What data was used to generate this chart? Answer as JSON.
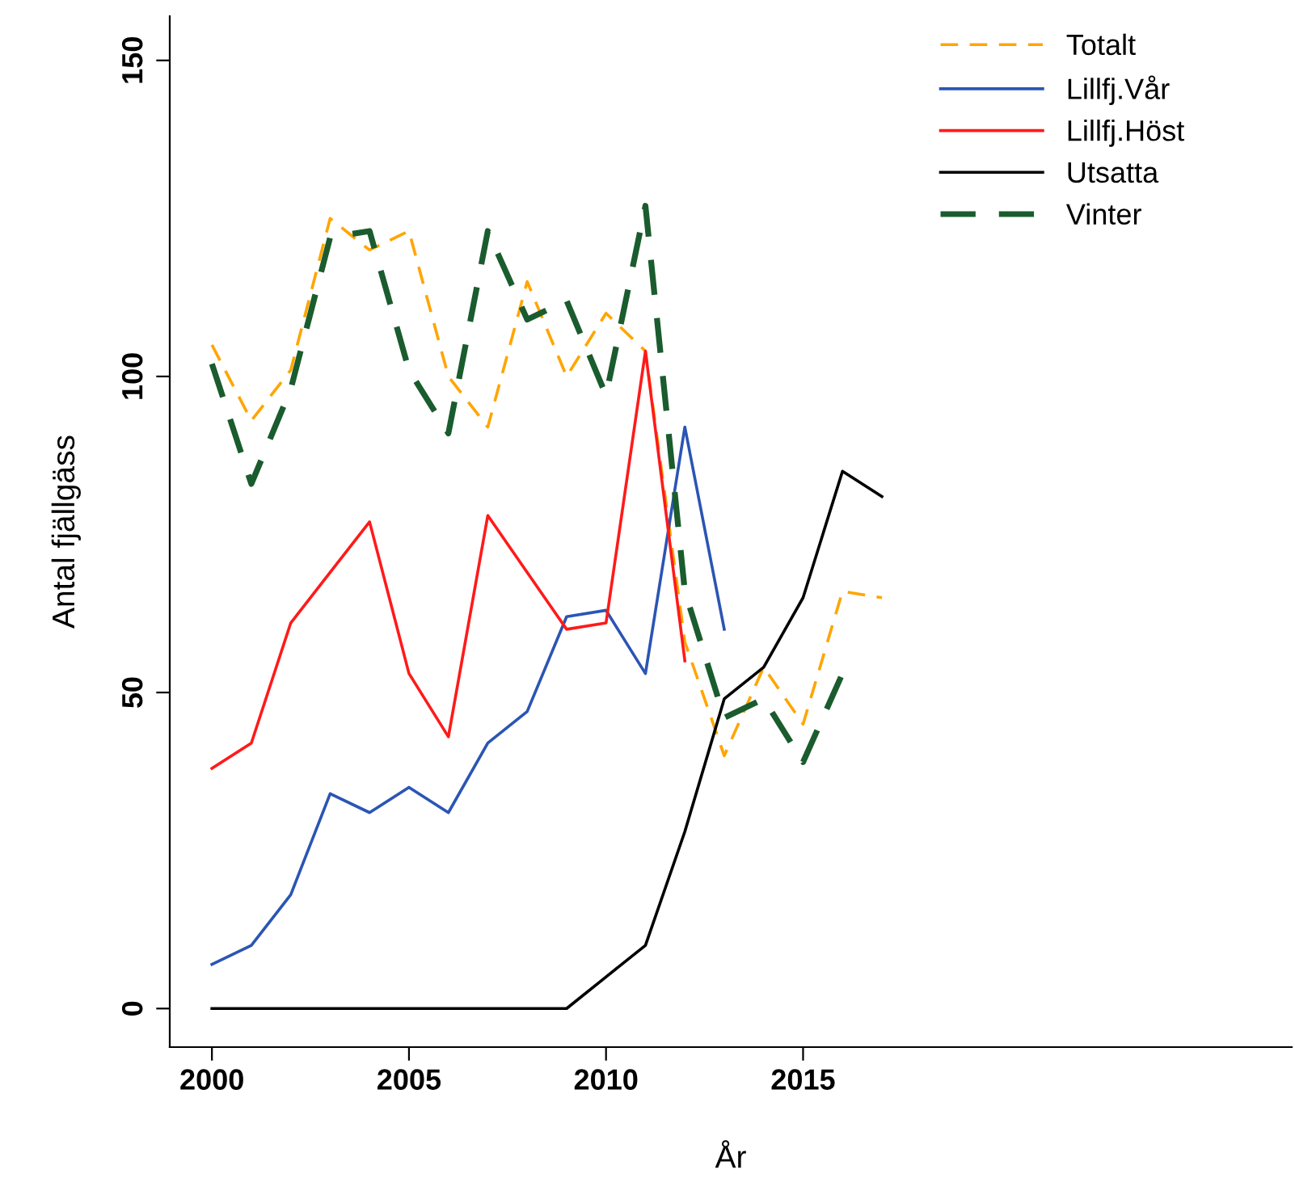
{
  "chart_data": {
    "type": "line",
    "xlabel": "År",
    "ylabel": "Antal fjällgäss",
    "xlim": [
      1998.93,
      2027.4
    ],
    "ylim": [
      -6.1,
      157
    ],
    "xticks": [
      2000,
      2005,
      2010,
      2015
    ],
    "yticks": [
      0,
      50,
      100,
      150
    ],
    "grid": false,
    "legend": "top right",
    "marker": "none",
    "series": [
      {
        "name": "Totalt",
        "color": "#ffa500",
        "line_style": "dashed",
        "x": [
          2000,
          2001,
          2002,
          2003,
          2004,
          2005,
          2006,
          2007,
          2008,
          2009,
          2010,
          2011,
          2012,
          2013,
          2014,
          2015,
          2016,
          2017
        ],
        "values": [
          105,
          93,
          101,
          125,
          120,
          123,
          100,
          92,
          115,
          100,
          110,
          104,
          58,
          40,
          54,
          45,
          66,
          65
        ]
      },
      {
        "name": "Lillfj.Vår",
        "color": "#2b55b4",
        "line_style": "solid",
        "x": [
          2000,
          2001,
          2002,
          2003,
          2004,
          2005,
          2006,
          2007,
          2008,
          2009,
          2010,
          2011,
          2012,
          2013
        ],
        "values": [
          7,
          10,
          18,
          34,
          31,
          35,
          31,
          42,
          47,
          62,
          63,
          53,
          92,
          60
        ]
      },
      {
        "name": "Lillfj.Höst",
        "color": "#ff1a1a",
        "line_style": "solid",
        "x": [
          2000,
          2001,
          2002,
          2003,
          2004,
          2005,
          2006,
          2007,
          2008,
          2009,
          2010,
          2011,
          2012
        ],
        "values": [
          38,
          42,
          61,
          69,
          77,
          53,
          43,
          78,
          69,
          60,
          61,
          104,
          55
        ]
      },
      {
        "name": "Utsatta",
        "color": "#000000",
        "line_style": "solid",
        "x": [
          2000,
          2001,
          2002,
          2003,
          2004,
          2005,
          2006,
          2007,
          2008,
          2009,
          2010,
          2011,
          2012,
          2013,
          2014,
          2015,
          2016,
          2017
        ],
        "values": [
          0,
          0,
          0,
          0,
          0,
          0,
          0,
          0,
          0,
          0,
          5,
          10,
          28,
          49,
          54,
          65,
          85,
          81
        ]
      },
      {
        "name": "Vinter",
        "color": "#1a5c2e",
        "line_style": "dashed",
        "x": [
          2000,
          2001,
          2002,
          2003,
          2004,
          2005,
          2006,
          2007,
          2008,
          2009,
          2010,
          2011,
          2012,
          2013,
          2014,
          2015,
          2016
        ],
        "values": [
          102,
          83,
          98,
          122,
          123,
          101,
          91,
          123,
          109,
          112,
          97,
          127,
          66,
          46,
          49,
          39,
          53
        ]
      }
    ]
  }
}
